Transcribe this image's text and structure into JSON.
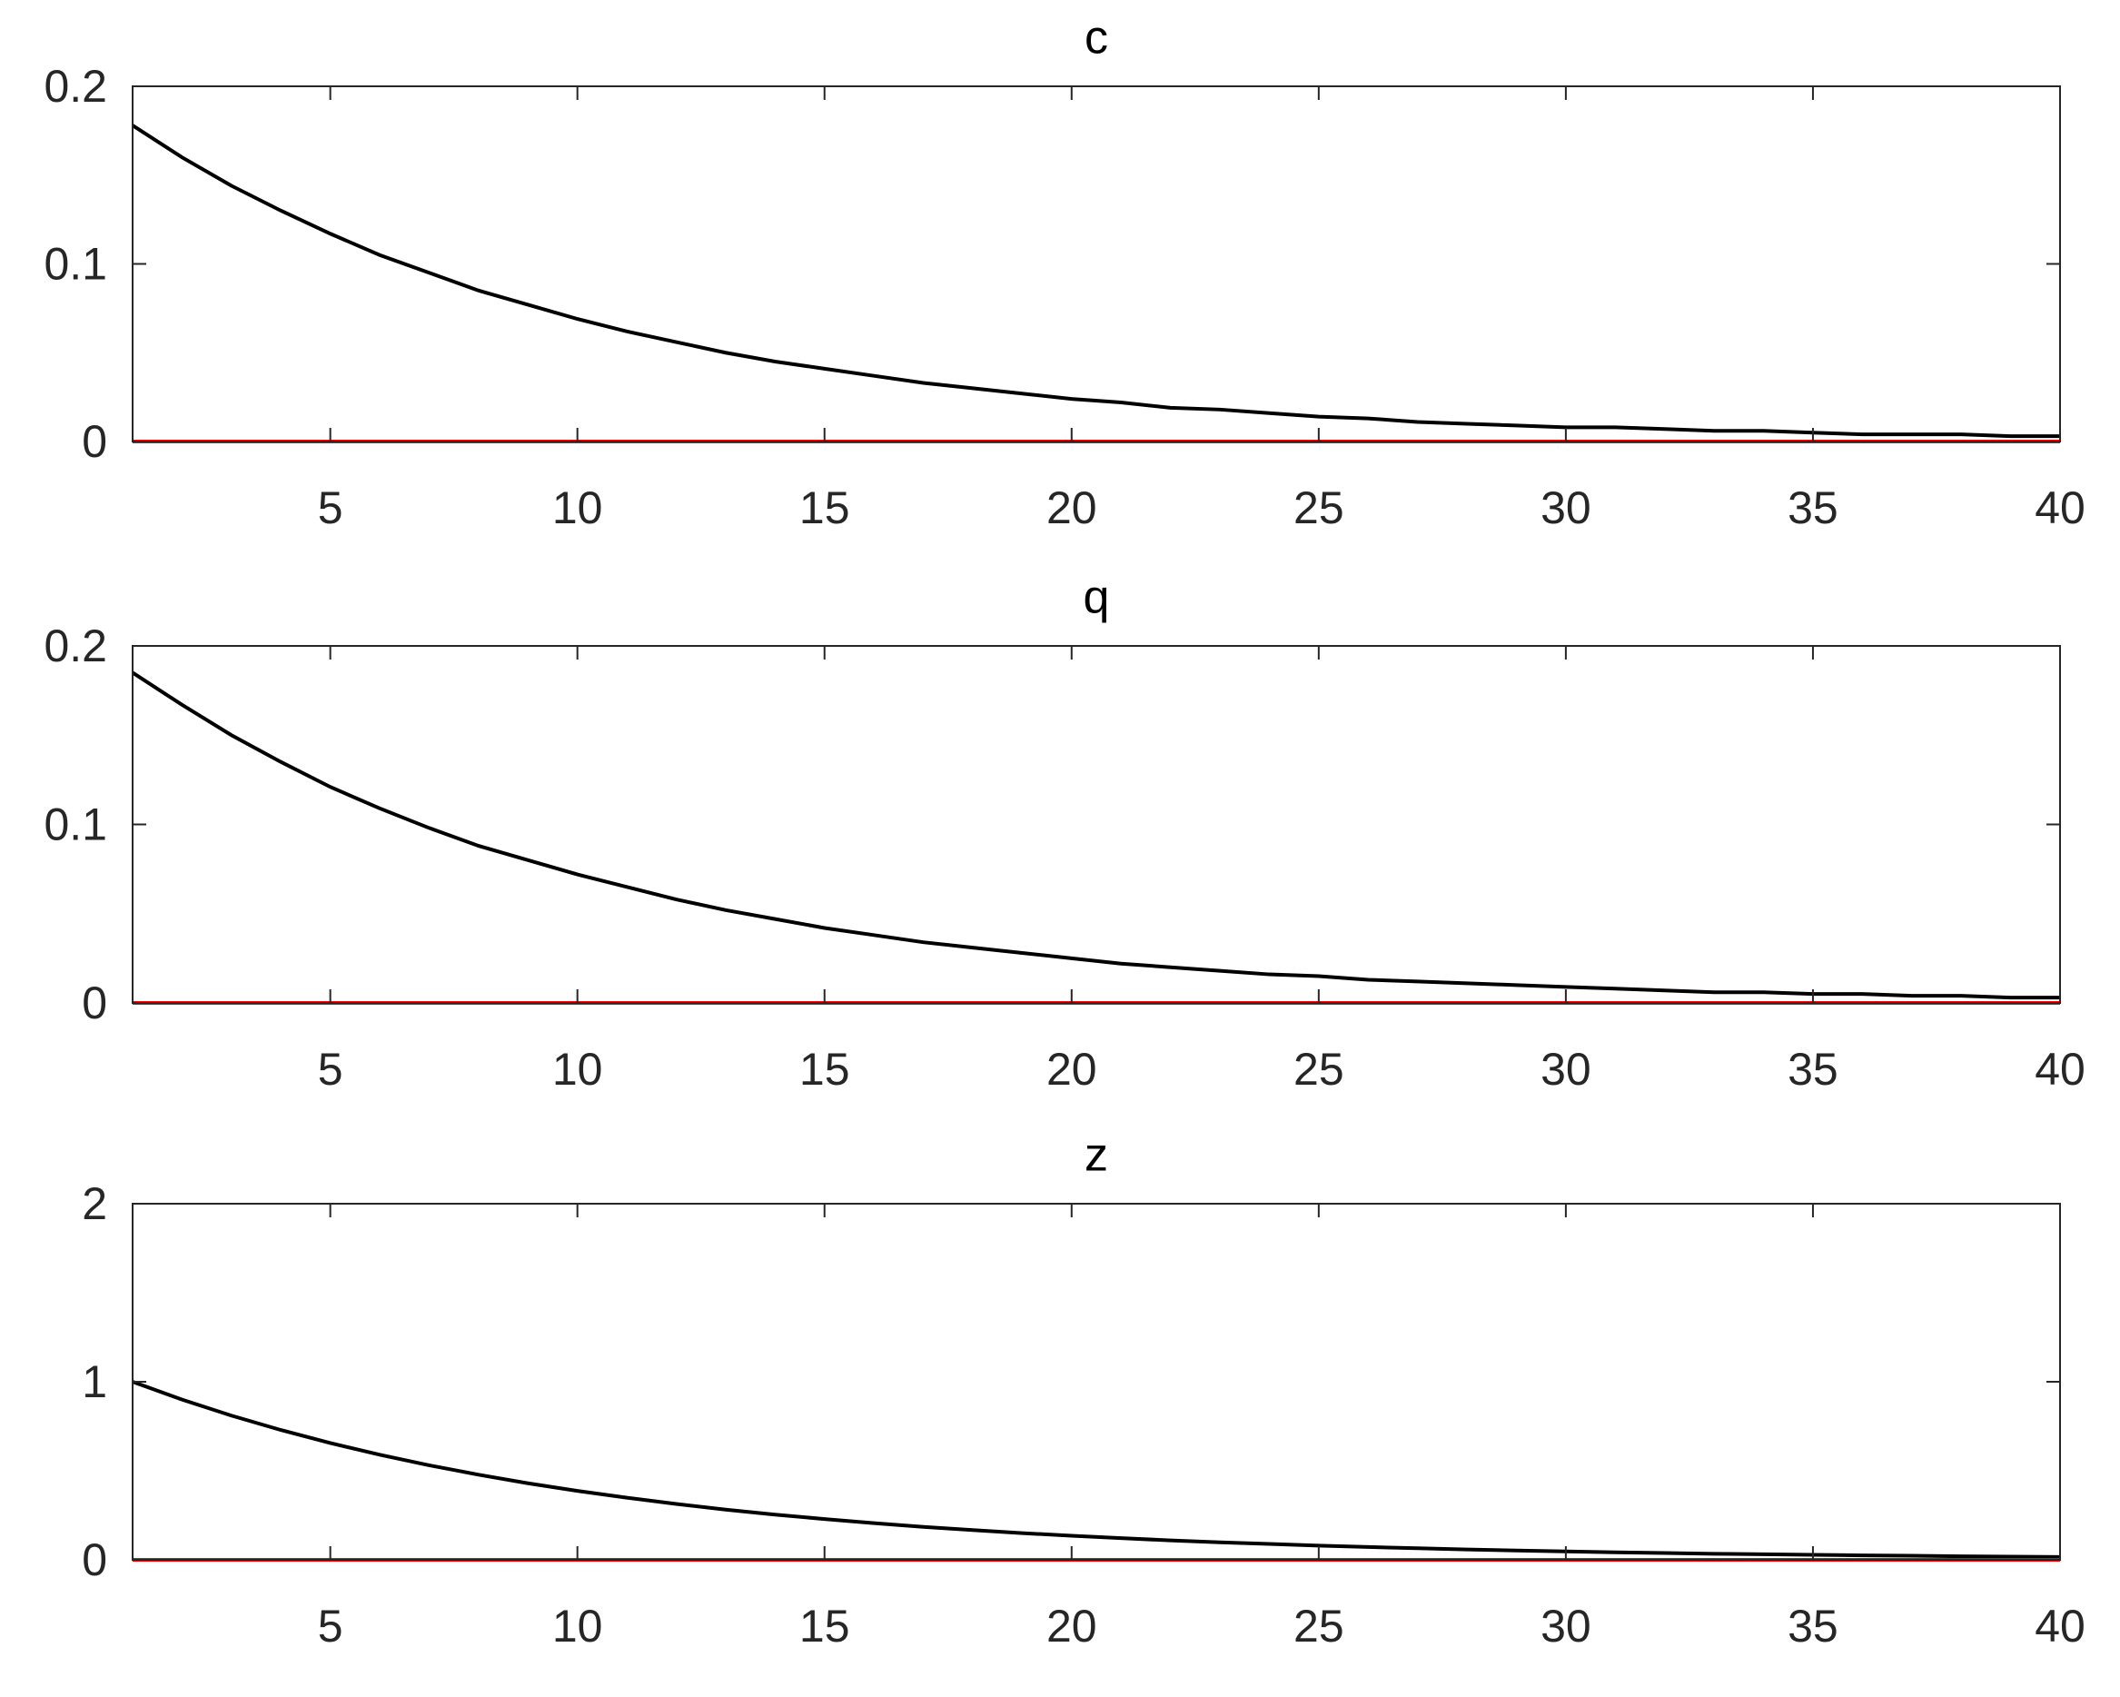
{
  "chart_data": [
    {
      "type": "line",
      "title": "c",
      "x": [
        1,
        2,
        3,
        4,
        5,
        6,
        7,
        8,
        9,
        10,
        11,
        12,
        13,
        14,
        15,
        16,
        17,
        18,
        19,
        20,
        21,
        22,
        23,
        24,
        25,
        26,
        27,
        28,
        29,
        30,
        31,
        32,
        33,
        34,
        35,
        36,
        37,
        38,
        39,
        40
      ],
      "series": [
        {
          "color": "#000000",
          "values": [
            0.178,
            0.16,
            0.144,
            0.13,
            0.117,
            0.105,
            0.095,
            0.085,
            0.077,
            0.069,
            0.062,
            0.056,
            0.05,
            0.045,
            0.041,
            0.037,
            0.033,
            0.03,
            0.027,
            0.024,
            0.022,
            0.019,
            0.018,
            0.016,
            0.014,
            0.013,
            0.011,
            0.01,
            0.009,
            0.008,
            0.008,
            0.007,
            0.006,
            0.006,
            0.005,
            0.004,
            0.004,
            0.004,
            0.003,
            0.003
          ]
        },
        {
          "color": "#ff0000",
          "values": [
            0,
            0,
            0,
            0,
            0,
            0,
            0,
            0,
            0,
            0,
            0,
            0,
            0,
            0,
            0,
            0,
            0,
            0,
            0,
            0,
            0,
            0,
            0,
            0,
            0,
            0,
            0,
            0,
            0,
            0,
            0,
            0,
            0,
            0,
            0,
            0,
            0,
            0,
            0,
            0
          ]
        }
      ],
      "xlim": [
        1,
        40
      ],
      "xticks": [
        5,
        10,
        15,
        20,
        25,
        30,
        35,
        40
      ],
      "ylim": [
        0,
        0.2
      ],
      "yticks": [
        0,
        0.1,
        0.2
      ],
      "grid": false
    },
    {
      "type": "line",
      "title": "q",
      "x": [
        1,
        2,
        3,
        4,
        5,
        6,
        7,
        8,
        9,
        10,
        11,
        12,
        13,
        14,
        15,
        16,
        17,
        18,
        19,
        20,
        21,
        22,
        23,
        24,
        25,
        26,
        27,
        28,
        29,
        30,
        31,
        32,
        33,
        34,
        35,
        36,
        37,
        38,
        39,
        40
      ],
      "series": [
        {
          "color": "#000000",
          "values": [
            0.185,
            0.167,
            0.15,
            0.135,
            0.121,
            0.109,
            0.098,
            0.088,
            0.08,
            0.072,
            0.065,
            0.058,
            0.052,
            0.047,
            0.042,
            0.038,
            0.034,
            0.031,
            0.028,
            0.025,
            0.022,
            0.02,
            0.018,
            0.016,
            0.015,
            0.013,
            0.012,
            0.011,
            0.01,
            0.009,
            0.008,
            0.007,
            0.006,
            0.006,
            0.005,
            0.005,
            0.004,
            0.004,
            0.003,
            0.003
          ]
        },
        {
          "color": "#ff0000",
          "values": [
            0,
            0,
            0,
            0,
            0,
            0,
            0,
            0,
            0,
            0,
            0,
            0,
            0,
            0,
            0,
            0,
            0,
            0,
            0,
            0,
            0,
            0,
            0,
            0,
            0,
            0,
            0,
            0,
            0,
            0,
            0,
            0,
            0,
            0,
            0,
            0,
            0,
            0,
            0,
            0
          ]
        }
      ],
      "xlim": [
        1,
        40
      ],
      "xticks": [
        5,
        10,
        15,
        20,
        25,
        30,
        35,
        40
      ],
      "ylim": [
        0,
        0.2
      ],
      "yticks": [
        0,
        0.1,
        0.2
      ],
      "grid": false
    },
    {
      "type": "line",
      "title": "z",
      "x": [
        1,
        2,
        3,
        4,
        5,
        6,
        7,
        8,
        9,
        10,
        11,
        12,
        13,
        14,
        15,
        16,
        17,
        18,
        19,
        20,
        21,
        22,
        23,
        24,
        25,
        26,
        27,
        28,
        29,
        30,
        31,
        32,
        33,
        34,
        35,
        36,
        37,
        38,
        39,
        40
      ],
      "series": [
        {
          "color": "#000000",
          "values": [
            1,
            0.9,
            0.81,
            0.729,
            0.656,
            0.59,
            0.531,
            0.478,
            0.43,
            0.387,
            0.349,
            0.314,
            0.282,
            0.254,
            0.229,
            0.206,
            0.185,
            0.167,
            0.15,
            0.135,
            0.122,
            0.109,
            0.098,
            0.089,
            0.08,
            0.072,
            0.065,
            0.058,
            0.052,
            0.047,
            0.042,
            0.038,
            0.034,
            0.031,
            0.028,
            0.025,
            0.023,
            0.02,
            0.018,
            0.016
          ]
        },
        {
          "color": "#ff0000",
          "values": [
            0,
            0,
            0,
            0,
            0,
            0,
            0,
            0,
            0,
            0,
            0,
            0,
            0,
            0,
            0,
            0,
            0,
            0,
            0,
            0,
            0,
            0,
            0,
            0,
            0,
            0,
            0,
            0,
            0,
            0,
            0,
            0,
            0,
            0,
            0,
            0,
            0,
            0,
            0,
            0
          ]
        }
      ],
      "xlim": [
        1,
        40
      ],
      "xticks": [
        5,
        10,
        15,
        20,
        25,
        30,
        35,
        40
      ],
      "ylim": [
        0,
        2
      ],
      "yticks": [
        0,
        1,
        2
      ],
      "grid": false
    }
  ]
}
